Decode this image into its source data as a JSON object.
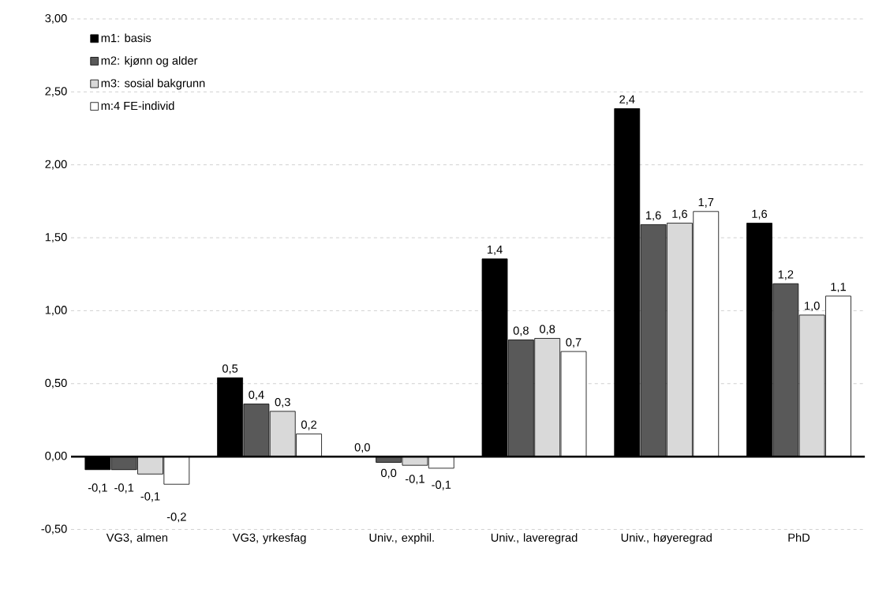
{
  "chart_data": {
    "type": "bar",
    "categories": [
      "VG3, almen",
      "VG3, yrkesfag",
      "Univ., exphil.",
      "Univ., laveregrad",
      "Univ., høyeregrad",
      "PhD"
    ],
    "series": [
      {
        "name": "m1: basis",
        "color": "#000000",
        "values": [
          -0.09,
          0.54,
          0.0,
          1.355,
          2.385,
          1.6
        ],
        "value_labels": [
          "-0,1",
          "0,5",
          "0,0",
          "1,4",
          "2,4",
          "1,6"
        ]
      },
      {
        "name": "m2: kjønn og alder",
        "color": "#595959",
        "values": [
          -0.09,
          0.36,
          -0.04,
          0.8,
          1.59,
          1.185
        ],
        "value_labels": [
          "-0,1",
          "0,4",
          "0,0",
          "0,8",
          "1,6",
          "1,2"
        ]
      },
      {
        "name": "m3: sosial bakgrunn",
        "color": "#d9d9d9",
        "values": [
          -0.12,
          0.31,
          -0.06,
          0.81,
          1.6,
          0.97
        ],
        "value_labels": [
          "-0,1",
          "0,3",
          "-0,1",
          "0,8",
          "1,6",
          "1,0"
        ]
      },
      {
        "name": "m:4 FE-individ",
        "color": "#ffffff",
        "values": [
          -0.19,
          0.155,
          -0.08,
          0.72,
          1.68,
          1.1
        ],
        "value_labels": [
          "-0,2",
          "0,2",
          "-0,1",
          "0,7",
          "1,7",
          "1,1"
        ]
      }
    ],
    "ylim": [
      -0.5,
      3
    ],
    "yticks": [
      {
        "value": -0.5,
        "label": "-0,50"
      },
      {
        "value": 0,
        "label": "0,00"
      },
      {
        "value": 0.5,
        "label": "0,50"
      },
      {
        "value": 1,
        "label": "1,00"
      },
      {
        "value": 1.5,
        "label": "1,50"
      },
      {
        "value": 2,
        "label": "2,00"
      },
      {
        "value": 2.5,
        "label": "2,50"
      },
      {
        "value": 3,
        "label": "3,00"
      }
    ],
    "grid": "y",
    "legend": "top left"
  }
}
